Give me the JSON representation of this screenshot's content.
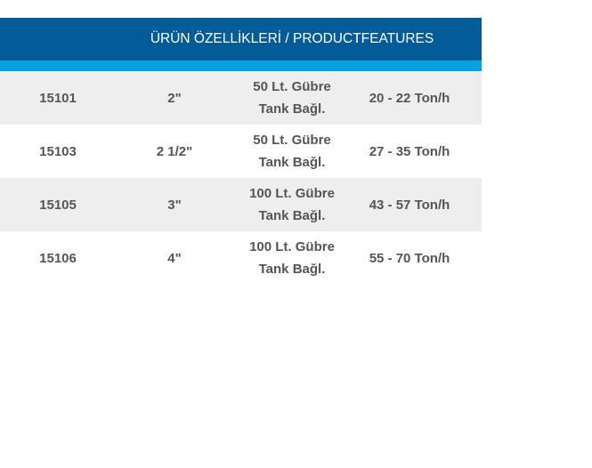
{
  "header": {
    "title": "ÜRÜN ÖZELLİKLERİ / PRODUCTFEATURES"
  },
  "colors": {
    "header": "#035b98",
    "accent_bar": "#09a0e0",
    "row_alt": "#eeeeee",
    "text": "#555555"
  },
  "rows": [
    {
      "code": "15101",
      "size": "2\"",
      "tank_line1": "50 Lt. Gübre",
      "tank_line2": "Tank Bağl.",
      "capacity": "20 - 22 Ton/h"
    },
    {
      "code": "15103",
      "size": "2 1/2\"",
      "tank_line1": "50 Lt. Gübre",
      "tank_line2": "Tank Bağl.",
      "capacity": "27 - 35 Ton/h"
    },
    {
      "code": "15105",
      "size": "3\"",
      "tank_line1": "100 Lt. Gübre",
      "tank_line2": "Tank Bağl.",
      "capacity": "43 - 57 Ton/h"
    },
    {
      "code": "15106",
      "size": "4\"",
      "tank_line1": "100 Lt. Gübre",
      "tank_line2": "Tank Bağl.",
      "capacity": "55 - 70 Ton/h"
    }
  ]
}
